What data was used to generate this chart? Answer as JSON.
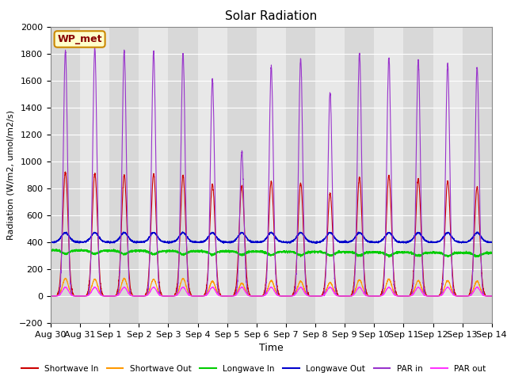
{
  "title": "Solar Radiation",
  "ylabel": "Radiation (W/m2, umol/m2/s)",
  "xlabel": "Time",
  "ylim": [
    -200,
    2000
  ],
  "yticks": [
    -200,
    0,
    200,
    400,
    600,
    800,
    1000,
    1200,
    1400,
    1600,
    1800,
    2000
  ],
  "fig_bg_color": "#ffffff",
  "plot_bg_color": "#e8e8e8",
  "grid_color": "#ffffff",
  "legend_label": "WP_met",
  "series": {
    "shortwave_in": {
      "color": "#cc0000",
      "label": "Shortwave In"
    },
    "shortwave_out": {
      "color": "#ff9900",
      "label": "Shortwave Out"
    },
    "longwave_in": {
      "color": "#00cc00",
      "label": "Longwave In"
    },
    "longwave_out": {
      "color": "#0000cc",
      "label": "Longwave Out"
    },
    "par_in": {
      "color": "#9933cc",
      "label": "PAR in"
    },
    "par_out": {
      "color": "#ff33ff",
      "label": "PAR out"
    }
  },
  "n_days": 15,
  "pts_per_day": 288,
  "sw_in_peaks": [
    920,
    910,
    900,
    905,
    895,
    830,
    820,
    850,
    840,
    760,
    880,
    890,
    870,
    855,
    810
  ],
  "sw_out_peaks": [
    130,
    125,
    130,
    125,
    130,
    110,
    95,
    115,
    110,
    100,
    120,
    125,
    115,
    115,
    110
  ],
  "par_in_peaks": [
    1820,
    1840,
    1820,
    1810,
    1800,
    1610,
    1070,
    1700,
    1760,
    1510,
    1800,
    1770,
    1750,
    1720,
    1700
  ],
  "lw_in_base": 340,
  "lw_out_base": 400,
  "par_out_peak": 65
}
